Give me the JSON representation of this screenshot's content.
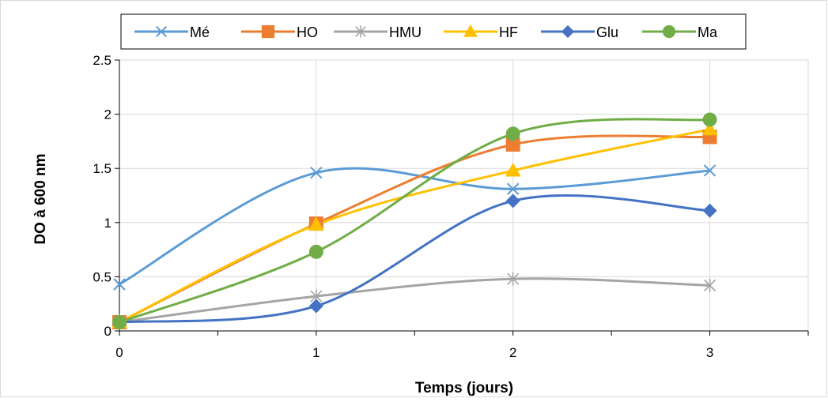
{
  "chart_data": {
    "type": "line",
    "title": "",
    "xlabel": "Temps (jours)",
    "ylabel": "DO à 600 nm",
    "x": [
      0,
      1,
      2,
      3
    ],
    "xlim": [
      0,
      3.5
    ],
    "ylim": [
      0,
      2.5
    ],
    "x_ticks": [
      "0",
      "1",
      "2",
      "3"
    ],
    "y_ticks": [
      "0",
      "0.5",
      "1",
      "1.5",
      "2",
      "2.5"
    ],
    "grid": true,
    "legend_position": "top",
    "series": [
      {
        "name": "Mé",
        "values": [
          0.43,
          1.46,
          1.31,
          1.48
        ],
        "color": "#5B9BD5",
        "marker": "x"
      },
      {
        "name": "HO",
        "values": [
          0.08,
          0.99,
          1.72,
          1.79
        ],
        "color": "#ED7D31",
        "marker": "square"
      },
      {
        "name": "HMU",
        "values": [
          0.08,
          0.32,
          0.48,
          0.42
        ],
        "color": "#A5A5A5",
        "marker": "star"
      },
      {
        "name": "HF",
        "values": [
          0.08,
          0.98,
          1.48,
          1.86
        ],
        "color": "#FFC000",
        "marker": "triangle"
      },
      {
        "name": "Glu",
        "values": [
          0.08,
          0.23,
          1.2,
          1.11
        ],
        "color": "#4472C4",
        "marker": "diamond"
      },
      {
        "name": "Ma",
        "values": [
          0.08,
          0.73,
          1.82,
          1.95
        ],
        "color": "#70AD47",
        "marker": "circle"
      }
    ]
  }
}
